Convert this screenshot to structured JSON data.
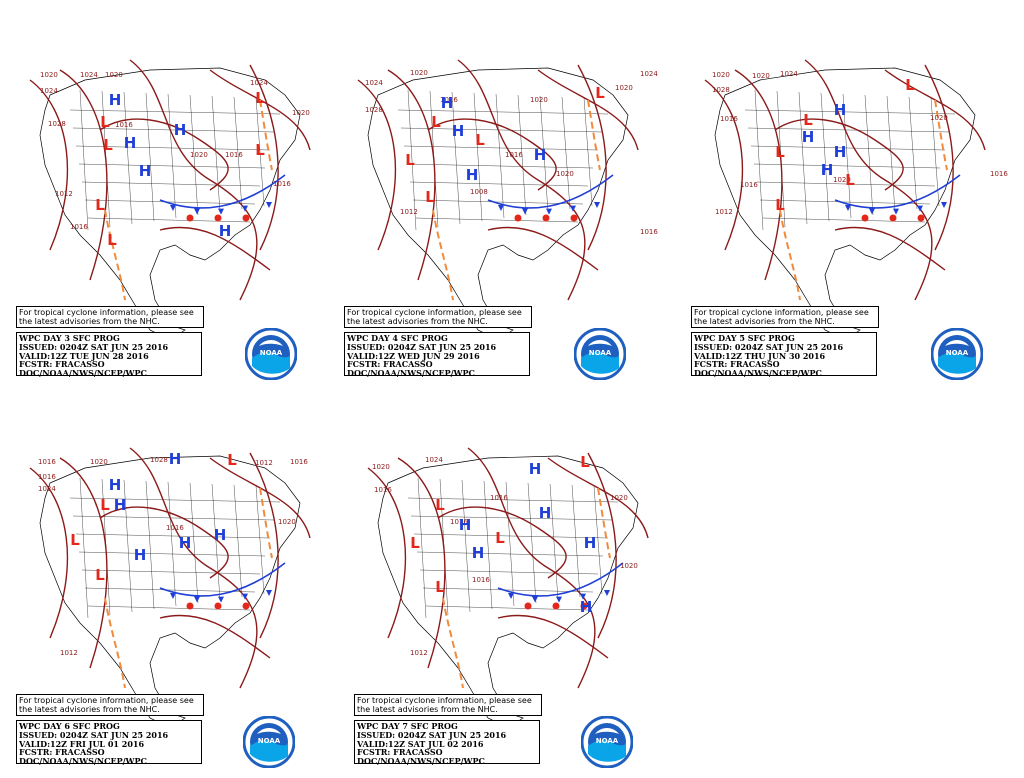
{
  "tc_notice": "For tropical cyclone information, please see the latest advisories from the NHC.",
  "logo_text": "NOAA",
  "colors": {
    "isobar": "#8b1a1a",
    "high": "#1f3fd6",
    "low": "#e3271b",
    "trough": "#f08a3c",
    "front_cold": "#1f3fd6",
    "front_warm": "#e3271b"
  },
  "panels": [
    {
      "id": "day3",
      "title": "WPC DAY 3 SFC PROG",
      "issued": "ISSUED: 0204Z SAT JUN 25 2016",
      "valid": "VALID:12Z TUE JUN 28 2016",
      "forecaster": "FCSTR: FRACASSO",
      "agency": "DOC/NOAA/NWS/NCEP/WPC",
      "isobar_labels": [
        "1020",
        "1024",
        "1024",
        "1020",
        "1028",
        "1016",
        "1020",
        "1024",
        "1020",
        "1016",
        "1016",
        "1012",
        "1016"
      ],
      "highs": 5,
      "lows": 6
    },
    {
      "id": "day4",
      "title": "WPC DAY 4 SFC PROG",
      "issued": "ISSUED: 0204Z SAT JUN 25 2016",
      "valid": "VALID:12Z WED JUN 29 2016",
      "forecaster": "FCSTR: FRACASSO",
      "agency": "DOC/NOAA/NWS/NCEP/WPC",
      "isobar_labels": [
        "1024",
        "1020",
        "1028",
        "1016",
        "1024",
        "1020",
        "1016",
        "1020",
        "1020",
        "1008",
        "1012",
        "1016"
      ],
      "highs": 4,
      "lows": 5
    },
    {
      "id": "day5",
      "title": "WPC DAY 5 SFC PROG",
      "issued": "ISSUED: 0204Z SAT JUN 25 2016",
      "valid": "VALID:12Z THU JUN 30 2016",
      "forecaster": "FCSTR: FRACASSO",
      "agency": "DOC/NOAA/NWS/NCEP/WPC",
      "isobar_labels": [
        "1020",
        "1024",
        "1028",
        "1016",
        "1020",
        "1020",
        "1016",
        "1020",
        "1016",
        "1012"
      ],
      "highs": 4,
      "lows": 5
    },
    {
      "id": "day6",
      "title": "WPC DAY 6 SFC PROG",
      "issued": "ISSUED: 0204Z SAT JUN 25 2016",
      "valid": "VALID:12Z FRI JUL 01 2016",
      "forecaster": "FCSTR: FRACASSO",
      "agency": "DOC/NOAA/NWS/NCEP/WPC",
      "isobar_labels": [
        "1016",
        "1020",
        "1016",
        "1024",
        "1028",
        "1012",
        "1016",
        "1020",
        "1016",
        "1012"
      ],
      "highs": 6,
      "lows": 4
    },
    {
      "id": "day7",
      "title": "WPC DAY 7 SFC PROG",
      "issued": "ISSUED: 0204Z SAT JUN 25 2016",
      "valid": "VALID:12Z SAT JUL 02 2016",
      "forecaster": "FCSTR: FRACASSO",
      "agency": "DOC/NOAA/NWS/NCEP/WPC",
      "isobar_labels": [
        "1020",
        "1016",
        "1024",
        "1016",
        "1016",
        "1020",
        "1016",
        "1020",
        "1012"
      ],
      "highs": 6,
      "lows": 5
    }
  ]
}
